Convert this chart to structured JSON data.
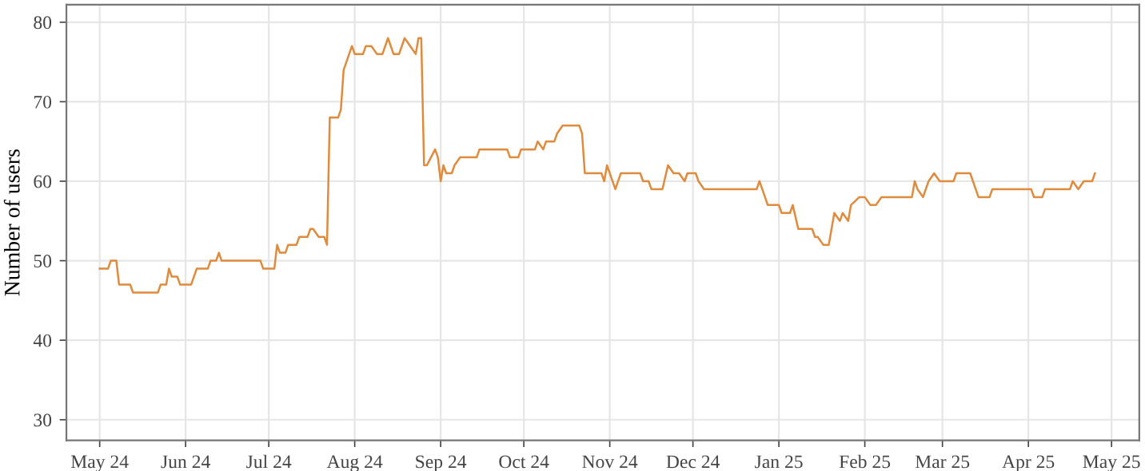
{
  "chart_data": {
    "type": "line",
    "ylabel": "Number of users",
    "grid": true,
    "marker": "none",
    "line_style": "solid",
    "xlim": [
      "2024-04-19",
      "2025-05-11"
    ],
    "ylim": [
      27.4,
      82.2
    ],
    "yticks": [
      30,
      40,
      50,
      60,
      70,
      80
    ],
    "xticks": [
      {
        "value": "2024-05-01",
        "label": "May 24"
      },
      {
        "value": "2024-06-01",
        "label": "Jun 24"
      },
      {
        "value": "2024-07-01",
        "label": "Jul 24"
      },
      {
        "value": "2024-08-01",
        "label": "Aug 24"
      },
      {
        "value": "2024-09-01",
        "label": "Sep 24"
      },
      {
        "value": "2024-10-01",
        "label": "Oct 24"
      },
      {
        "value": "2024-11-01",
        "label": "Nov 24"
      },
      {
        "value": "2024-12-01",
        "label": "Dec 24"
      },
      {
        "value": "2025-01-01",
        "label": "Jan 25"
      },
      {
        "value": "2025-02-01",
        "label": "Feb 25"
      },
      {
        "value": "2025-03-01",
        "label": "Mar 25"
      },
      {
        "value": "2025-04-01",
        "label": "Apr 25"
      },
      {
        "value": "2025-05-01",
        "label": "May 25"
      }
    ],
    "series": [
      {
        "color": "#e08a3c",
        "x": [
          "2024-05-01",
          "2024-05-04",
          "2024-05-05",
          "2024-05-07",
          "2024-05-08",
          "2024-05-12",
          "2024-05-13",
          "2024-05-22",
          "2024-05-23",
          "2024-05-25",
          "2024-05-26",
          "2024-05-27",
          "2024-05-29",
          "2024-05-30",
          "2024-06-03",
          "2024-06-05",
          "2024-06-09",
          "2024-06-10",
          "2024-06-12",
          "2024-06-13",
          "2024-06-14",
          "2024-06-28",
          "2024-06-29",
          "2024-07-03",
          "2024-07-04",
          "2024-07-05",
          "2024-07-07",
          "2024-07-08",
          "2024-07-11",
          "2024-07-12",
          "2024-07-15",
          "2024-07-16",
          "2024-07-17",
          "2024-07-19",
          "2024-07-21",
          "2024-07-22",
          "2024-07-23",
          "2024-07-26",
          "2024-07-27",
          "2024-07-28",
          "2024-07-31",
          "2024-08-01",
          "2024-08-04",
          "2024-08-05",
          "2024-08-07",
          "2024-08-09",
          "2024-08-11",
          "2024-08-13",
          "2024-08-15",
          "2024-08-17",
          "2024-08-19",
          "2024-08-21",
          "2024-08-23",
          "2024-08-24",
          "2024-08-25",
          "2024-08-26",
          "2024-08-27",
          "2024-08-30",
          "2024-08-31",
          "2024-09-01",
          "2024-09-02",
          "2024-09-03",
          "2024-09-05",
          "2024-09-06",
          "2024-09-08",
          "2024-09-14",
          "2024-09-15",
          "2024-09-25",
          "2024-09-26",
          "2024-09-29",
          "2024-09-30",
          "2024-10-05",
          "2024-10-06",
          "2024-10-08",
          "2024-10-09",
          "2024-10-12",
          "2024-10-13",
          "2024-10-15",
          "2024-10-21",
          "2024-10-22",
          "2024-10-23",
          "2024-10-29",
          "2024-10-30",
          "2024-10-31",
          "2024-11-03",
          "2024-11-05",
          "2024-11-12",
          "2024-11-13",
          "2024-11-15",
          "2024-11-16",
          "2024-11-20",
          "2024-11-22",
          "2024-11-24",
          "2024-11-26",
          "2024-11-28",
          "2024-11-29",
          "2024-12-02",
          "2024-12-03",
          "2024-12-05",
          "2024-12-24",
          "2024-12-25",
          "2024-12-26",
          "2024-12-28",
          "2025-01-01",
          "2025-01-02",
          "2025-01-05",
          "2025-01-06",
          "2025-01-08",
          "2025-01-13",
          "2025-01-14",
          "2025-01-15",
          "2025-01-17",
          "2025-01-19",
          "2025-01-21",
          "2025-01-23",
          "2025-01-24",
          "2025-01-26",
          "2025-01-27",
          "2025-01-30",
          "2025-02-01",
          "2025-02-03",
          "2025-02-05",
          "2025-02-07",
          "2025-02-18",
          "2025-02-19",
          "2025-02-20",
          "2025-02-22",
          "2025-02-24",
          "2025-02-26",
          "2025-02-28",
          "2025-03-05",
          "2025-03-06",
          "2025-03-11",
          "2025-03-14",
          "2025-03-18",
          "2025-03-19",
          "2025-04-02",
          "2025-04-03",
          "2025-04-06",
          "2025-04-07",
          "2025-04-16",
          "2025-04-17",
          "2025-04-19",
          "2025-04-21",
          "2025-04-24",
          "2025-04-25"
        ],
        "values": [
          49,
          49,
          50,
          50,
          47,
          47,
          46,
          46,
          47,
          47,
          49,
          48,
          48,
          47,
          47,
          49,
          49,
          50,
          50,
          51,
          50,
          50,
          49,
          49,
          52,
          51,
          51,
          52,
          52,
          53,
          53,
          54,
          54,
          53,
          53,
          52,
          68,
          68,
          69,
          74,
          77,
          76,
          76,
          77,
          77,
          76,
          76,
          78,
          76,
          76,
          78,
          77,
          76,
          78,
          78,
          62,
          62,
          64,
          63,
          60,
          62,
          61,
          61,
          62,
          63,
          63,
          64,
          64,
          63,
          63,
          64,
          64,
          65,
          64,
          65,
          65,
          66,
          67,
          67,
          66,
          61,
          61,
          60,
          62,
          59,
          61,
          61,
          60,
          60,
          59,
          59,
          62,
          61,
          61,
          60,
          61,
          61,
          60,
          59,
          59,
          60,
          59,
          57,
          57,
          56,
          56,
          57,
          54,
          54,
          53,
          53,
          52,
          52,
          56,
          55,
          56,
          55,
          57,
          58,
          58,
          57,
          57,
          58,
          58,
          60,
          59,
          58,
          60,
          61,
          60,
          60,
          61,
          61,
          58,
          58,
          59,
          59,
          58,
          58,
          59,
          59,
          60,
          59,
          60,
          60,
          61
        ]
      }
    ]
  }
}
